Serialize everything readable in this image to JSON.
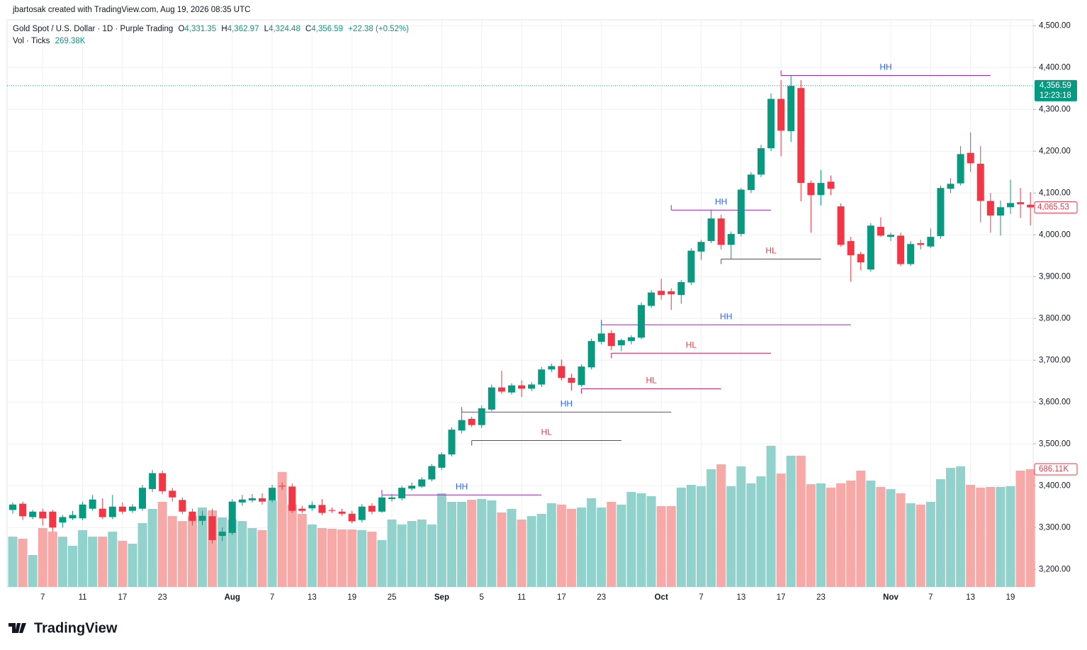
{
  "header": {
    "attribution": "jbartosak created with TradingView.com, Aug 19, 2026 08:35 UTC",
    "symbol": "Gold Spot / U.S. Dollar · 1D · Purple Trading",
    "ohlc_labels": [
      "O",
      "H",
      "L",
      "C"
    ],
    "ohlc_values": [
      "4,331.35",
      "4,362.97",
      "4,324.48",
      "4,356.59"
    ],
    "change": "+22.38 (+0.52%)",
    "volume_label": "Vol · Ticks",
    "volume_value": "269.38K"
  },
  "footer": {
    "logo": "TradingView"
  },
  "chart_data": {
    "type": "candlestick",
    "up_color": "#089981",
    "down_color": "#f23645",
    "grid": true,
    "categories": [
      null,
      null,
      null,
      "7",
      null,
      null,
      null,
      "11",
      null,
      null,
      null,
      "17",
      null,
      null,
      null,
      "23",
      null,
      null,
      null,
      null,
      null,
      null,
      "Aug",
      null,
      null,
      null,
      "7",
      null,
      null,
      null,
      "13",
      null,
      null,
      null,
      "19",
      null,
      null,
      null,
      "25",
      null,
      null,
      null,
      null,
      "Sep",
      null,
      null,
      null,
      "5",
      null,
      null,
      null,
      "11",
      null,
      null,
      null,
      "17",
      null,
      null,
      null,
      "23",
      null,
      null,
      null,
      null,
      null,
      "Oct",
      null,
      null,
      null,
      "7",
      null,
      null,
      null,
      "13",
      null,
      null,
      null,
      "17",
      null,
      null,
      null,
      "23",
      null,
      null,
      null,
      null,
      null,
      null,
      "Nov",
      null,
      null,
      null,
      "7",
      null,
      null,
      null,
      "13",
      null,
      null,
      null,
      "19",
      null,
      null
    ],
    "ohlc": [
      [
        3342,
        3360,
        3333,
        3355
      ],
      [
        3357,
        3362,
        3318,
        3327
      ],
      [
        3325,
        3342,
        3320,
        3338
      ],
      [
        3338,
        3345,
        3305,
        3322
      ],
      [
        3338,
        3342,
        3290,
        3300
      ],
      [
        3312,
        3330,
        3300,
        3325
      ],
      [
        3322,
        3340,
        3318,
        3330
      ],
      [
        3322,
        3362,
        3318,
        3355
      ],
      [
        3345,
        3378,
        3340,
        3367
      ],
      [
        3345,
        3370,
        3320,
        3325
      ],
      [
        3325,
        3378,
        3320,
        3350
      ],
      [
        3350,
        3360,
        3332,
        3338
      ],
      [
        3340,
        3356,
        3335,
        3350
      ],
      [
        3345,
        3402,
        3340,
        3395
      ],
      [
        3392,
        3438,
        3385,
        3430
      ],
      [
        3430,
        3436,
        3380,
        3387
      ],
      [
        3388,
        3395,
        3362,
        3372
      ],
      [
        3366,
        3372,
        3332,
        3338
      ],
      [
        3338,
        3345,
        3305,
        3316
      ],
      [
        3316,
        3340,
        3305,
        3328
      ],
      [
        3327,
        3345,
        3262,
        3270
      ],
      [
        3280,
        3300,
        3268,
        3290
      ],
      [
        3287,
        3368,
        3282,
        3362
      ],
      [
        3360,
        3378,
        3352,
        3367
      ],
      [
        3365,
        3380,
        3360,
        3370
      ],
      [
        3370,
        3382,
        3355,
        3362
      ],
      [
        3365,
        3402,
        3360,
        3395
      ],
      [
        3400,
        3408,
        3390,
        3398
      ],
      [
        3398,
        3405,
        3335,
        3340
      ],
      [
        3345,
        3352,
        3335,
        3340
      ],
      [
        3346,
        3362,
        3340,
        3354
      ],
      [
        3354,
        3368,
        3330,
        3335
      ],
      [
        3342,
        3348,
        3335,
        3340
      ],
      [
        3338,
        3345,
        3328,
        3333
      ],
      [
        3333,
        3340,
        3310,
        3315
      ],
      [
        3318,
        3356,
        3312,
        3350
      ],
      [
        3352,
        3358,
        3332,
        3338
      ],
      [
        3338,
        3378,
        3335,
        3372
      ],
      [
        3368,
        3380,
        3362,
        3372
      ],
      [
        3370,
        3400,
        3365,
        3395
      ],
      [
        3393,
        3408,
        3388,
        3400
      ],
      [
        3398,
        3420,
        3395,
        3415
      ],
      [
        3415,
        3452,
        3410,
        3447
      ],
      [
        3443,
        3480,
        3438,
        3475
      ],
      [
        3475,
        3540,
        3470,
        3534
      ],
      [
        3532,
        3578,
        3525,
        3557
      ],
      [
        3560,
        3565,
        3540,
        3545
      ],
      [
        3545,
        3592,
        3538,
        3585
      ],
      [
        3582,
        3642,
        3578,
        3635
      ],
      [
        3635,
        3675,
        3620,
        3625
      ],
      [
        3623,
        3645,
        3618,
        3640
      ],
      [
        3640,
        3652,
        3612,
        3632
      ],
      [
        3632,
        3648,
        3626,
        3642
      ],
      [
        3642,
        3684,
        3636,
        3678
      ],
      [
        3678,
        3692,
        3672,
        3686
      ],
      [
        3686,
        3702,
        3652,
        3658
      ],
      [
        3658,
        3668,
        3628,
        3646
      ],
      [
        3641,
        3690,
        3636,
        3685
      ],
      [
        3683,
        3752,
        3678,
        3746
      ],
      [
        3744,
        3792,
        3738,
        3764
      ],
      [
        3765,
        3772,
        3724,
        3734
      ],
      [
        3736,
        3752,
        3722,
        3748
      ],
      [
        3746,
        3760,
        3738,
        3755
      ],
      [
        3754,
        3838,
        3750,
        3832
      ],
      [
        3830,
        3868,
        3825,
        3862
      ],
      [
        3866,
        3895,
        3845,
        3856
      ],
      [
        3865,
        3872,
        3820,
        3858
      ],
      [
        3856,
        3892,
        3835,
        3887
      ],
      [
        3886,
        3968,
        3880,
        3962
      ],
      [
        3960,
        3988,
        3940,
        3983
      ],
      [
        3985,
        4060,
        3980,
        4039
      ],
      [
        4039,
        4048,
        3965,
        3976
      ],
      [
        3976,
        4008,
        3942,
        4002
      ],
      [
        4002,
        4112,
        3996,
        4108
      ],
      [
        4107,
        4150,
        4100,
        4144
      ],
      [
        4144,
        4215,
        4138,
        4207
      ],
      [
        4207,
        4338,
        4200,
        4325
      ],
      [
        4325,
        4370,
        4188,
        4249
      ],
      [
        4248,
        4380,
        4222,
        4356
      ],
      [
        4351,
        4370,
        4080,
        4124
      ],
      [
        4124,
        4130,
        4005,
        4095
      ],
      [
        4095,
        4155,
        4070,
        4124
      ],
      [
        4127,
        4142,
        4095,
        4110
      ],
      [
        4068,
        4075,
        3972,
        3976
      ],
      [
        3985,
        3995,
        3888,
        3951
      ],
      [
        3954,
        3960,
        3915,
        3934
      ],
      [
        3917,
        4028,
        3912,
        4022
      ],
      [
        4019,
        4042,
        3995,
        3998
      ],
      [
        3995,
        4005,
        3985,
        4000
      ],
      [
        3998,
        4005,
        3925,
        3930
      ],
      [
        3930,
        3985,
        3925,
        3978
      ],
      [
        3980,
        3988,
        3965,
        3976
      ],
      [
        3972,
        4015,
        3968,
        3995
      ],
      [
        3997,
        4118,
        3990,
        4112
      ],
      [
        4110,
        4135,
        4100,
        4122
      ],
      [
        4123,
        4212,
        4118,
        4193
      ],
      [
        4196,
        4245,
        4150,
        4171
      ],
      [
        4170,
        4212,
        4030,
        4081
      ],
      [
        4081,
        4100,
        4005,
        4046
      ],
      [
        4046,
        4082,
        3998,
        4066
      ],
      [
        4066,
        4132,
        4050,
        4076
      ],
      [
        4078,
        4112,
        4040,
        4073
      ],
      [
        4072,
        4102,
        4022,
        4065.53
      ]
    ],
    "ylim": [
      3158,
      4514
    ],
    "yticks": [
      {
        "value": 3200,
        "label": "3,200.00"
      },
      {
        "value": 3300,
        "label": "3,300.00"
      },
      {
        "value": 3400,
        "label": "3,400.00"
      },
      {
        "value": 3500,
        "label": "3,500.00"
      },
      {
        "value": 3600,
        "label": "3,600.00"
      },
      {
        "value": 3700,
        "label": "3,700.00"
      },
      {
        "value": 3800,
        "label": "3,800.00"
      },
      {
        "value": 3900,
        "label": "3,900.00"
      },
      {
        "value": 4000,
        "label": "4,000.00"
      },
      {
        "value": 4100,
        "label": "4,100.00"
      },
      {
        "value": 4200,
        "label": "4,200.00"
      },
      {
        "value": 4300,
        "label": "4,300.00"
      },
      {
        "value": 4400,
        "label": "4,400.00"
      },
      {
        "value": 4500,
        "label": "4,500.00"
      }
    ],
    "volume": {
      "ylim": [
        0,
        1000
      ],
      "up_color": "#92d2cc",
      "down_color": "#f7a9a7",
      "last_label": "686.11K",
      "values": [
        293,
        281,
        186,
        343,
        322,
        293,
        240,
        331,
        293,
        293,
        322,
        269,
        252,
        372,
        455,
        496,
        413,
        384,
        413,
        463,
        446,
        405,
        393,
        384,
        343,
        331,
        504,
        670,
        480,
        426,
        364,
        343,
        339,
        335,
        335,
        331,
        322,
        273,
        393,
        364,
        384,
        393,
        364,
        546,
        496,
        496,
        508,
        513,
        504,
        434,
        455,
        393,
        413,
        426,
        488,
        480,
        455,
        463,
        517,
        463,
        496,
        480,
        554,
        546,
        529,
        471,
        471,
        579,
        595,
        587,
        686,
        715,
        587,
        703,
        604,
        645,
        823,
        661,
        765,
        765,
        599,
        604,
        579,
        604,
        620,
        678,
        620,
        583,
        570,
        546,
        488,
        480,
        496,
        628,
        694,
        703,
        595,
        579,
        583,
        583,
        587,
        678,
        686.11
      ]
    },
    "price_line": {
      "value": 4356.59,
      "label": "4,356.59",
      "countdown": "12:23:18",
      "color": "#089981"
    },
    "current_price": {
      "value": 4065.53,
      "label": "4,065.53",
      "color": "#f23645"
    },
    "annotations": [
      {
        "label": "HH",
        "price": 4381,
        "from": 77,
        "to": 98,
        "color": "#2962ff",
        "line_color": "#9c27b0"
      },
      {
        "label": "HH",
        "price": 4059,
        "from": 66,
        "to": 76,
        "color": "#2962ff",
        "line_color": "#9c27b0"
      },
      {
        "label": "HL",
        "price": 3942,
        "from": 71,
        "to": 81,
        "color": "#f23645",
        "line_color": "#c2185b"
      },
      {
        "label": "HH",
        "price": 3785,
        "from": 59,
        "to": 84,
        "color": "#2962ff",
        "line_color": "#9c27b0"
      },
      {
        "label": "HL",
        "price": 3717,
        "from": 60,
        "to": 76,
        "color": "#f23645",
        "line_color": "#c2185b"
      },
      {
        "label": "HL",
        "price": 3632,
        "from": 57,
        "to": 71,
        "color": "#f23645",
        "line_color": "#c2185b"
      },
      {
        "label": "HH",
        "price": 3576,
        "from": 45,
        "to": 66,
        "color": "#2962ff",
        "line_color": "#9c27b0"
      },
      {
        "label": "HL",
        "price": 3508,
        "from": 46,
        "to": 61,
        "color": "#f23645",
        "line_color": "#c2185b"
      },
      {
        "label": "HH",
        "price": 3378,
        "from": 37,
        "to": 53,
        "color": "#2962ff",
        "line_color": "#9c27b0"
      }
    ]
  }
}
